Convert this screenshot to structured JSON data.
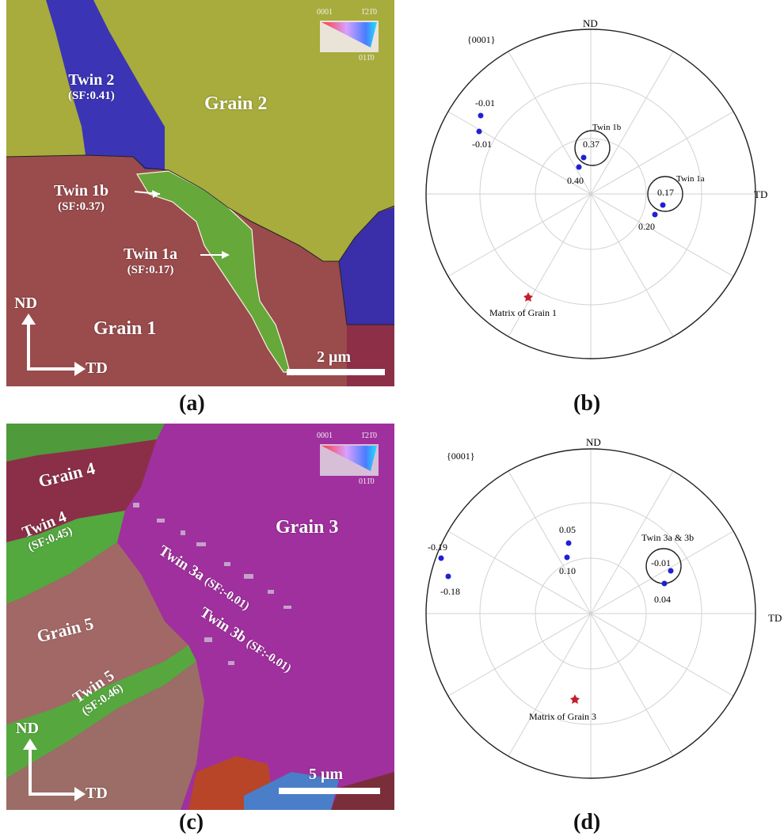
{
  "panels": {
    "a": {
      "caption": "(a)",
      "grains": [
        "Grain 1",
        "Grain 2"
      ],
      "twins": [
        {
          "name": "Twin 2",
          "sf": "(SF:0.41)"
        },
        {
          "name": "Twin 1b",
          "sf": "(SF:0.37)"
        },
        {
          "name": "Twin 1a",
          "sf": "(SF:0.17)"
        }
      ],
      "axes": {
        "nd": "ND",
        "td": "TD"
      },
      "scale_bar": "2 μm",
      "color_key": {
        "c0001": "0001",
        "c1210": "1̄21̄0",
        "c0110": "011̄0"
      }
    },
    "b": {
      "caption": "(b)",
      "pole_figure": {
        "type": "scatter",
        "title": "{0001}",
        "axis_labels": {
          "top": "ND",
          "right": "TD"
        },
        "poles": [
          {
            "label": "-0.01",
            "color": "#1f1fd6"
          },
          {
            "label": "-0.01",
            "color": "#1f1fd6"
          },
          {
            "label": "0.37",
            "color": "#1f1fd6"
          },
          {
            "label": "0.40",
            "color": "#1f1fd6"
          },
          {
            "label": "0.17",
            "color": "#1f1fd6"
          },
          {
            "label": "0.20",
            "color": "#1f1fd6"
          }
        ],
        "circles": [
          "Twin 1b",
          "Twin 1a"
        ],
        "matrix": "Matrix of Grain 1",
        "matrix_color": "#c0202a"
      }
    },
    "c": {
      "caption": "(c)",
      "grains": [
        "Grain 4",
        "Grain 3",
        "Grain 5"
      ],
      "twins": [
        {
          "name": "Twin 4",
          "sf": "(SF:0.45)"
        },
        {
          "name": "Twin 3a",
          "sf": "(SF:-0.01)"
        },
        {
          "name": "Twin 3b",
          "sf": "(SF:-0.01)"
        },
        {
          "name": "Twin 5",
          "sf": "(SF:0.46)"
        }
      ],
      "axes": {
        "nd": "ND",
        "td": "TD"
      },
      "scale_bar": "5 μm",
      "color_key": {
        "c0001": "0001",
        "c1210": "1̄21̄0",
        "c0110": "011̄0"
      }
    },
    "d": {
      "caption": "(d)",
      "pole_figure": {
        "type": "scatter",
        "title": "{0001}",
        "axis_labels": {
          "top": "ND",
          "right": "TD"
        },
        "poles": [
          {
            "label": "-0.19"
          },
          {
            "label": "-0.18"
          },
          {
            "label": "0.05"
          },
          {
            "label": "0.10"
          },
          {
            "label": "-0.01"
          },
          {
            "label": "0.04"
          }
        ],
        "circles": [
          "Twin 3a & 3b"
        ],
        "matrix": "Matrix of Grain 3",
        "matrix_color": "#c0202a"
      }
    }
  }
}
